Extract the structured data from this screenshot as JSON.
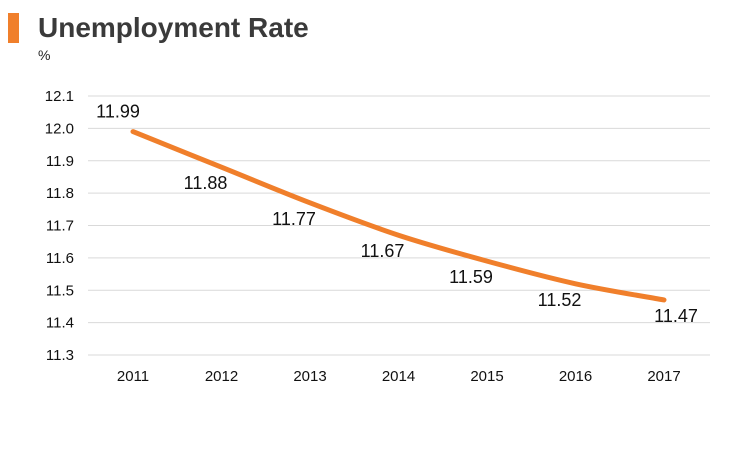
{
  "accent_color": "#F07F2B",
  "chart_data": {
    "type": "line",
    "title": "Unemployment Rate",
    "ylabel": "%",
    "xlabel": "",
    "categories": [
      "2011",
      "2012",
      "2013",
      "2014",
      "2015",
      "2016",
      "2017"
    ],
    "series": [
      {
        "values": [
          11.99,
          11.88,
          11.77,
          11.67,
          11.59,
          11.52,
          11.47
        ]
      }
    ],
    "data_labels": [
      "11.99",
      "11.88",
      "11.77",
      "11.67",
      "11.59",
      "11.52",
      "11.47"
    ],
    "ylim": [
      11.3,
      12.1
    ],
    "yticks": [
      "11.3",
      "11.4",
      "11.5",
      "11.6",
      "11.7",
      "11.8",
      "11.9",
      "12.0",
      "12.1"
    ],
    "grid": true,
    "line_color": "#F07F2B",
    "grid_color": "#D9D9D9"
  }
}
